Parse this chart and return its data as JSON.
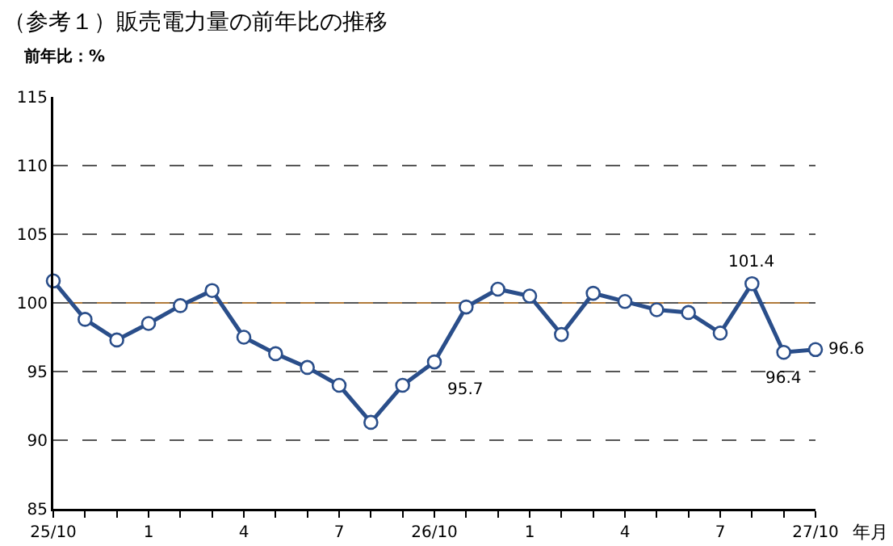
{
  "chart_data": {
    "type": "line",
    "title": "（参考１）販売電力量の前年比の推移",
    "ylabel": "前年比：%",
    "xlabel": "年月",
    "categories": [
      "25/10",
      null,
      null,
      "1",
      null,
      null,
      "4",
      null,
      null,
      "7",
      null,
      null,
      "26/10",
      null,
      null,
      "1",
      null,
      null,
      "4",
      null,
      null,
      "7",
      null,
      null,
      "27/10"
    ],
    "series": [
      {
        "color": "#2a4e8a",
        "values": [
          101.6,
          98.8,
          97.3,
          98.5,
          99.8,
          100.9,
          97.5,
          96.3,
          95.3,
          94.0,
          91.3,
          94.0,
          95.7,
          99.7,
          101.0,
          100.5,
          97.7,
          100.7,
          100.1,
          99.5,
          99.3,
          97.8,
          101.4,
          96.4,
          96.6
        ],
        "value_labels": [
          null,
          null,
          null,
          null,
          null,
          null,
          null,
          null,
          null,
          null,
          null,
          null,
          "95.7",
          null,
          null,
          null,
          null,
          null,
          null,
          null,
          null,
          null,
          "101.4",
          "96.4",
          "96.6"
        ]
      }
    ],
    "ylim": [
      85,
      115
    ],
    "yticks": [
      85,
      90,
      95,
      100,
      105,
      110,
      115
    ],
    "grid": "y",
    "marker": "circle",
    "line_style": "solid",
    "ref_lines": [
      {
        "axis": "y",
        "value": 100,
        "color": "#b07a3a",
        "line_style": "solid"
      }
    ]
  }
}
